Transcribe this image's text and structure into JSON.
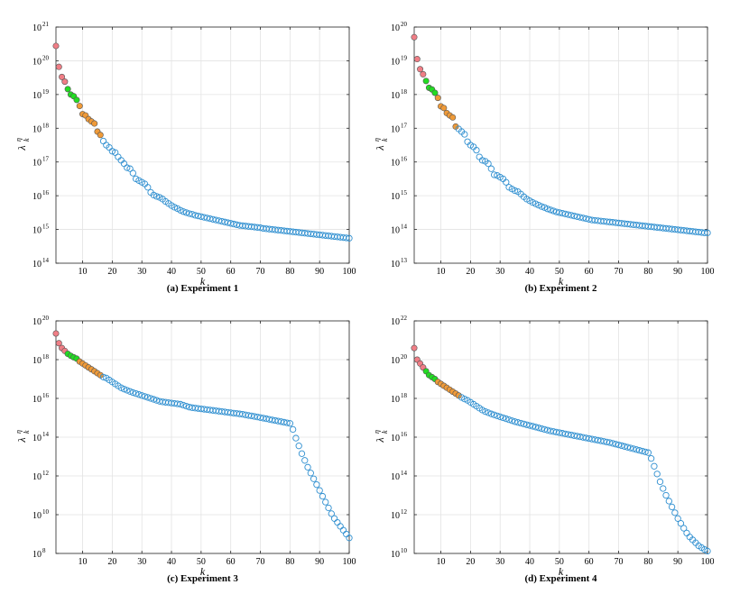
{
  "colors": {
    "red": "#f07e86",
    "green": "#22dd22",
    "orange": "#ef9a38",
    "blue": "#2f8fd0",
    "grid": "#e3e3e3",
    "axis": "#262626"
  },
  "chart_data": [
    {
      "type": "scatter",
      "caption": "(a) Experiment 1",
      "xlabel": "k",
      "ylabel": "λ",
      "ylabel_sup": "η",
      "ylabel_sub": "k",
      "scale": "log",
      "xlim": [
        1,
        100
      ],
      "ylim_exp": [
        14,
        21
      ],
      "xticks": [
        10,
        20,
        30,
        40,
        50,
        60,
        70,
        80,
        90,
        100
      ],
      "yticks_exp": [
        14,
        15,
        16,
        17,
        18,
        19,
        20,
        21
      ],
      "grid": true,
      "log10_values": [
        20.44,
        19.82,
        19.52,
        19.38,
        19.16,
        19.0,
        18.95,
        18.84,
        18.66,
        18.42,
        18.38,
        18.27,
        18.2,
        18.14,
        17.9,
        17.8,
        17.62,
        17.5,
        17.43,
        17.32,
        17.28,
        17.15,
        17.05,
        16.95,
        16.83,
        16.8,
        16.67,
        16.5,
        16.45,
        16.4,
        16.35,
        16.25,
        16.1,
        16.02,
        15.98,
        15.95,
        15.9,
        15.83,
        15.77,
        15.71,
        15.66,
        15.62,
        15.57,
        15.53,
        15.5,
        15.47,
        15.45,
        15.42,
        15.4,
        15.38,
        15.36,
        15.34,
        15.32,
        15.3,
        15.28,
        15.26,
        15.24,
        15.22,
        15.2,
        15.18,
        15.16,
        15.14,
        15.12,
        15.11,
        15.1,
        15.09,
        15.08,
        15.07,
        15.06,
        15.05,
        15.03,
        15.02,
        15.01,
        15.0,
        14.99,
        14.98,
        14.97,
        14.96,
        14.95,
        14.94,
        14.93,
        14.92,
        14.91,
        14.9,
        14.89,
        14.88,
        14.87,
        14.86,
        14.85,
        14.84,
        14.83,
        14.82,
        14.81,
        14.8,
        14.79,
        14.78,
        14.77,
        14.76,
        14.75,
        14.74
      ],
      "groups": [
        {
          "color": "red",
          "from": 1,
          "to": 4
        },
        {
          "color": "green",
          "from": 5,
          "to": 8
        },
        {
          "color": "orange",
          "from": 9,
          "to": 16
        },
        {
          "color": "blue",
          "from": 17,
          "to": 100
        }
      ]
    },
    {
      "type": "scatter",
      "caption": "(b) Experiment 2",
      "xlabel": "k",
      "ylabel": "λ",
      "ylabel_sup": "η",
      "ylabel_sub": "k",
      "scale": "log",
      "xlim": [
        1,
        100
      ],
      "ylim_exp": [
        13,
        20
      ],
      "xticks": [
        10,
        20,
        30,
        40,
        50,
        60,
        70,
        80,
        90,
        100
      ],
      "yticks_exp": [
        13,
        14,
        15,
        16,
        17,
        18,
        19,
        20
      ],
      "grid": true,
      "log10_values": [
        19.7,
        19.05,
        18.75,
        18.6,
        18.4,
        18.2,
        18.15,
        18.05,
        17.9,
        17.65,
        17.6,
        17.45,
        17.38,
        17.32,
        17.05,
        16.98,
        16.9,
        16.82,
        16.6,
        16.5,
        16.45,
        16.35,
        16.15,
        16.05,
        16.02,
        15.95,
        15.8,
        15.62,
        15.6,
        15.55,
        15.5,
        15.4,
        15.25,
        15.2,
        15.15,
        15.12,
        15.05,
        14.97,
        14.9,
        14.85,
        14.8,
        14.76,
        14.72,
        14.68,
        14.65,
        14.61,
        14.58,
        14.55,
        14.52,
        14.5,
        14.48,
        14.46,
        14.44,
        14.42,
        14.4,
        14.38,
        14.36,
        14.34,
        14.32,
        14.3,
        14.28,
        14.27,
        14.26,
        14.25,
        14.24,
        14.23,
        14.22,
        14.21,
        14.2,
        14.19,
        14.18,
        14.17,
        14.16,
        14.15,
        14.14,
        14.13,
        14.12,
        14.11,
        14.1,
        14.09,
        14.08,
        14.07,
        14.06,
        14.05,
        14.04,
        14.03,
        14.02,
        14.01,
        14.0,
        13.99,
        13.98,
        13.97,
        13.96,
        13.95,
        13.94,
        13.93,
        13.92,
        13.91,
        13.9,
        13.9
      ],
      "groups": [
        {
          "color": "red",
          "from": 1,
          "to": 4
        },
        {
          "color": "green",
          "from": 5,
          "to": 8
        },
        {
          "color": "orange",
          "from": 9,
          "to": 15
        },
        {
          "color": "blue",
          "from": 16,
          "to": 100
        }
      ]
    },
    {
      "type": "scatter",
      "caption": "(c) Experiment 3",
      "xlabel": "k",
      "ylabel": "λ",
      "ylabel_sup": "η",
      "ylabel_sub": "k",
      "scale": "log",
      "xlim": [
        1,
        100
      ],
      "ylim_exp": [
        8,
        20
      ],
      "xticks": [
        10,
        20,
        30,
        40,
        50,
        60,
        70,
        80,
        90,
        100
      ],
      "yticks_exp": [
        8,
        10,
        12,
        14,
        16,
        18,
        20
      ],
      "grid": true,
      "log10_values": [
        19.35,
        18.85,
        18.6,
        18.45,
        18.3,
        18.2,
        18.12,
        18.05,
        17.9,
        17.8,
        17.7,
        17.6,
        17.5,
        17.4,
        17.3,
        17.2,
        17.1,
        17.05,
        16.95,
        16.85,
        16.75,
        16.65,
        16.55,
        16.48,
        16.42,
        16.36,
        16.3,
        16.25,
        16.2,
        16.15,
        16.1,
        16.05,
        16.0,
        15.95,
        15.9,
        15.85,
        15.82,
        15.8,
        15.78,
        15.76,
        15.74,
        15.72,
        15.7,
        15.65,
        15.6,
        15.55,
        15.52,
        15.5,
        15.48,
        15.46,
        15.44,
        15.42,
        15.4,
        15.38,
        15.36,
        15.34,
        15.32,
        15.3,
        15.28,
        15.26,
        15.24,
        15.22,
        15.2,
        15.18,
        15.15,
        15.12,
        15.1,
        15.07,
        15.04,
        15.01,
        14.98,
        14.95,
        14.92,
        14.89,
        14.86,
        14.83,
        14.8,
        14.77,
        14.74,
        14.71,
        14.4,
        13.95,
        13.55,
        13.15,
        12.8,
        12.45,
        12.15,
        11.85,
        11.55,
        11.25,
        10.95,
        10.65,
        10.35,
        10.05,
        9.8,
        9.6,
        9.4,
        9.2,
        9.0,
        8.8
      ],
      "groups": [
        {
          "color": "red",
          "from": 1,
          "to": 4
        },
        {
          "color": "green",
          "from": 5,
          "to": 8
        },
        {
          "color": "orange",
          "from": 9,
          "to": 16
        },
        {
          "color": "blue",
          "from": 17,
          "to": 100
        }
      ]
    },
    {
      "type": "scatter",
      "caption": "(d) Experiment 4",
      "xlabel": "k",
      "ylabel": "λ",
      "ylabel_sup": "η",
      "ylabel_sub": "k",
      "scale": "log",
      "xlim": [
        1,
        100
      ],
      "ylim_exp": [
        10,
        22
      ],
      "xticks": [
        10,
        20,
        30,
        40,
        50,
        60,
        70,
        80,
        90,
        100
      ],
      "yticks_exp": [
        10,
        12,
        14,
        16,
        18,
        20,
        22
      ],
      "grid": true,
      "log10_values": [
        20.6,
        20.0,
        19.8,
        19.6,
        19.4,
        19.2,
        19.1,
        19.0,
        18.85,
        18.75,
        18.65,
        18.55,
        18.45,
        18.35,
        18.25,
        18.15,
        18.05,
        17.97,
        17.9,
        17.8,
        17.7,
        17.6,
        17.5,
        17.4,
        17.32,
        17.26,
        17.2,
        17.15,
        17.1,
        17.05,
        17.0,
        16.95,
        16.9,
        16.85,
        16.8,
        16.76,
        16.72,
        16.68,
        16.64,
        16.6,
        16.56,
        16.52,
        16.48,
        16.44,
        16.4,
        16.36,
        16.32,
        16.29,
        16.26,
        16.23,
        16.2,
        16.17,
        16.14,
        16.11,
        16.08,
        16.05,
        16.02,
        15.99,
        15.96,
        15.93,
        15.9,
        15.87,
        15.84,
        15.81,
        15.78,
        15.75,
        15.72,
        15.68,
        15.64,
        15.6,
        15.56,
        15.52,
        15.48,
        15.44,
        15.4,
        15.36,
        15.32,
        15.28,
        15.24,
        15.2,
        14.9,
        14.5,
        14.1,
        13.7,
        13.35,
        13.0,
        12.7,
        12.4,
        12.1,
        11.8,
        11.55,
        11.3,
        11.05,
        10.85,
        10.7,
        10.55,
        10.4,
        10.3,
        10.2,
        10.12
      ],
      "groups": [
        {
          "color": "red",
          "from": 1,
          "to": 4
        },
        {
          "color": "green",
          "from": 5,
          "to": 8
        },
        {
          "color": "orange",
          "from": 9,
          "to": 16
        },
        {
          "color": "blue",
          "from": 17,
          "to": 100
        }
      ]
    }
  ]
}
